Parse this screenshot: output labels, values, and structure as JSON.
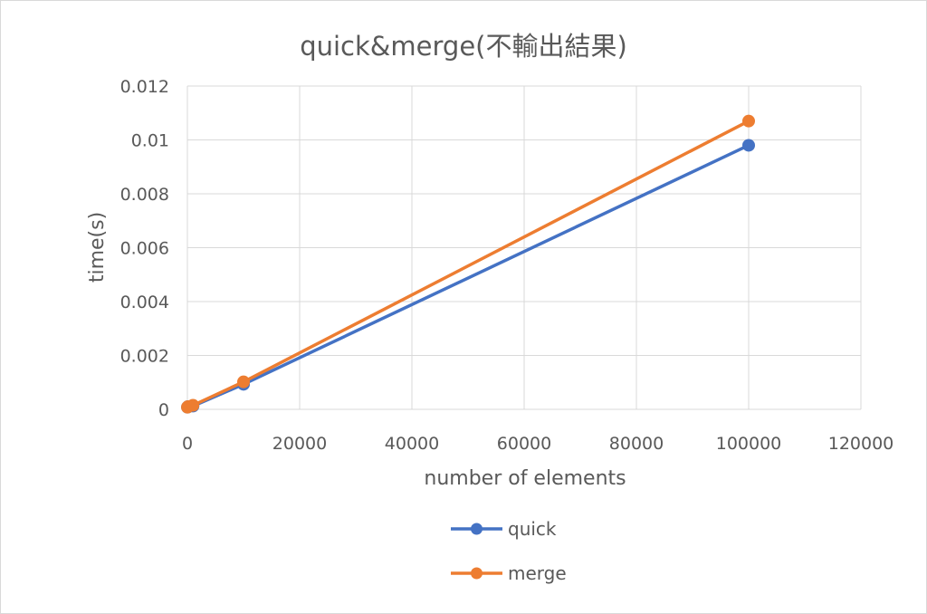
{
  "chart_data": {
    "type": "scatter",
    "title": "quick&merge(不輸出結果)",
    "xlabel": "number of elements",
    "ylabel": "time(s)",
    "xlim": [
      0,
      120000
    ],
    "ylim": [
      0,
      0.012
    ],
    "x_ticks": [
      0,
      20000,
      40000,
      60000,
      80000,
      100000,
      120000
    ],
    "y_ticks": [
      0,
      0.002,
      0.004,
      0.006,
      0.008,
      0.01,
      0.012
    ],
    "grid": true,
    "legend_position": "bottom",
    "series": [
      {
        "name": "quick",
        "color": "#4472C4",
        "x": [
          10,
          100,
          1000,
          10000,
          100000
        ],
        "y": [
          8e-05,
          0.0001,
          0.00012,
          0.00093,
          0.0098
        ]
      },
      {
        "name": "merge",
        "color": "#ED7D31",
        "x": [
          10,
          100,
          1000,
          10000,
          100000
        ],
        "y": [
          8e-05,
          0.0001,
          0.00015,
          0.00102,
          0.0107
        ]
      }
    ]
  }
}
